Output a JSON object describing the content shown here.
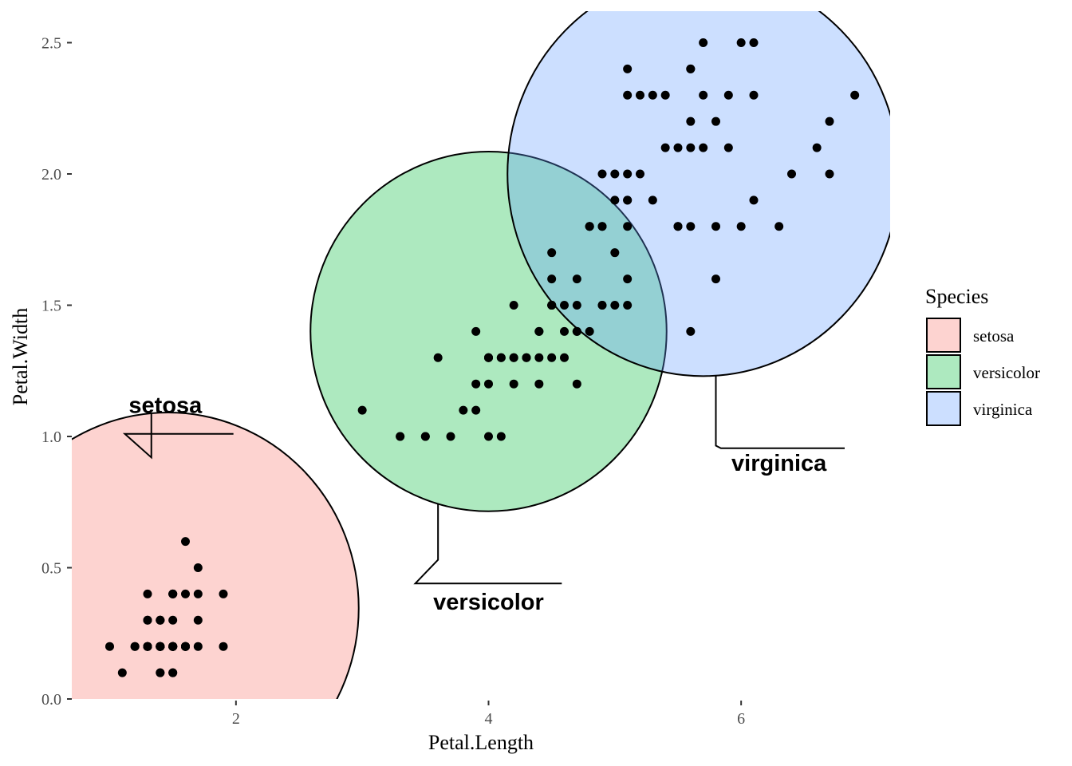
{
  "chart_data": {
    "type": "scatter",
    "xlabel": "Petal.Length",
    "ylabel": "Petal.Width",
    "x_ticks": [
      2,
      4,
      6
    ],
    "y_ticks": [
      0.0,
      0.5,
      1.0,
      1.5,
      2.0,
      2.5
    ],
    "y_tick_labels": [
      "0.0",
      "0.5",
      "1.0",
      "1.5",
      "2.0",
      "2.5"
    ],
    "xlim": [
      0.7,
      7.18
    ],
    "ylim": [
      0.0,
      2.62
    ],
    "grid": false,
    "legend": {
      "title": "Species",
      "placement": "right",
      "entries": [
        "setosa",
        "versicolor",
        "virginica"
      ]
    },
    "series": [
      {
        "name": "setosa",
        "fill": "#f8766d",
        "ellipse": {
          "cx": 1.462,
          "cy": 0.346,
          "rx": 1.51,
          "ry": 0.745
        },
        "label_text": "setosa",
        "label_anchor": {
          "x": 1.05,
          "y": 1.09
        },
        "points": [
          [
            1.4,
            0.2
          ],
          [
            1.4,
            0.2
          ],
          [
            1.3,
            0.2
          ],
          [
            1.5,
            0.2
          ],
          [
            1.4,
            0.2
          ],
          [
            1.7,
            0.4
          ],
          [
            1.4,
            0.3
          ],
          [
            1.5,
            0.2
          ],
          [
            1.4,
            0.2
          ],
          [
            1.5,
            0.1
          ],
          [
            1.5,
            0.2
          ],
          [
            1.6,
            0.2
          ],
          [
            1.4,
            0.1
          ],
          [
            1.1,
            0.1
          ],
          [
            1.2,
            0.2
          ],
          [
            1.5,
            0.4
          ],
          [
            1.3,
            0.4
          ],
          [
            1.4,
            0.3
          ],
          [
            1.7,
            0.3
          ],
          [
            1.5,
            0.3
          ],
          [
            1.7,
            0.2
          ],
          [
            1.5,
            0.4
          ],
          [
            1.0,
            0.2
          ],
          [
            1.7,
            0.5
          ],
          [
            1.9,
            0.2
          ],
          [
            1.6,
            0.2
          ],
          [
            1.6,
            0.4
          ],
          [
            1.5,
            0.2
          ],
          [
            1.4,
            0.2
          ],
          [
            1.6,
            0.2
          ],
          [
            1.6,
            0.2
          ],
          [
            1.5,
            0.4
          ],
          [
            1.5,
            0.1
          ],
          [
            1.4,
            0.2
          ],
          [
            1.5,
            0.2
          ],
          [
            1.2,
            0.2
          ],
          [
            1.3,
            0.2
          ],
          [
            1.4,
            0.1
          ],
          [
            1.3,
            0.2
          ],
          [
            1.5,
            0.2
          ],
          [
            1.3,
            0.3
          ],
          [
            1.3,
            0.3
          ],
          [
            1.3,
            0.2
          ],
          [
            1.6,
            0.6
          ],
          [
            1.9,
            0.4
          ],
          [
            1.4,
            0.3
          ],
          [
            1.6,
            0.2
          ],
          [
            1.4,
            0.2
          ],
          [
            1.5,
            0.2
          ],
          [
            1.4,
            0.2
          ]
        ]
      },
      {
        "name": "versicolor",
        "fill": "#00ba38",
        "ellipse": {
          "cx": 4.0,
          "cy": 1.4,
          "rx": 1.41,
          "ry": 0.685
        },
        "label_text": "versicolor",
        "label_anchor": {
          "x": 4.0,
          "y": 0.34
        },
        "points": [
          [
            4.7,
            1.4
          ],
          [
            4.5,
            1.5
          ],
          [
            4.9,
            1.5
          ],
          [
            4.0,
            1.3
          ],
          [
            4.6,
            1.5
          ],
          [
            4.5,
            1.3
          ],
          [
            4.7,
            1.6
          ],
          [
            3.3,
            1.0
          ],
          [
            4.6,
            1.3
          ],
          [
            3.9,
            1.4
          ],
          [
            3.5,
            1.0
          ],
          [
            4.2,
            1.5
          ],
          [
            4.0,
            1.0
          ],
          [
            4.7,
            1.4
          ],
          [
            3.6,
            1.3
          ],
          [
            4.4,
            1.4
          ],
          [
            4.5,
            1.5
          ],
          [
            4.1,
            1.0
          ],
          [
            4.5,
            1.5
          ],
          [
            3.9,
            1.1
          ],
          [
            4.8,
            1.8
          ],
          [
            4.0,
            1.3
          ],
          [
            4.9,
            1.5
          ],
          [
            4.7,
            1.2
          ],
          [
            4.3,
            1.3
          ],
          [
            4.4,
            1.4
          ],
          [
            4.8,
            1.4
          ],
          [
            5.0,
            1.7
          ],
          [
            4.5,
            1.5
          ],
          [
            3.5,
            1.0
          ],
          [
            3.8,
            1.1
          ],
          [
            3.7,
            1.0
          ],
          [
            3.9,
            1.2
          ],
          [
            5.1,
            1.6
          ],
          [
            4.5,
            1.5
          ],
          [
            4.5,
            1.6
          ],
          [
            4.7,
            1.5
          ],
          [
            4.4,
            1.3
          ],
          [
            4.1,
            1.3
          ],
          [
            4.0,
            1.3
          ],
          [
            4.4,
            1.2
          ],
          [
            4.6,
            1.4
          ],
          [
            4.0,
            1.2
          ],
          [
            3.3,
            1.0
          ],
          [
            4.2,
            1.3
          ],
          [
            4.2,
            1.2
          ],
          [
            4.2,
            1.3
          ],
          [
            4.3,
            1.3
          ],
          [
            3.0,
            1.1
          ],
          [
            4.1,
            1.3
          ]
        ]
      },
      {
        "name": "virginica",
        "fill": "#619cff",
        "ellipse": {
          "cx": 5.7,
          "cy": 2.0,
          "rx": 1.55,
          "ry": 0.77
        },
        "label_text": "virginica",
        "label_anchor": {
          "x": 6.3,
          "y": 0.87
        },
        "points": [
          [
            6.0,
            2.5
          ],
          [
            5.1,
            1.9
          ],
          [
            5.9,
            2.1
          ],
          [
            5.6,
            1.8
          ],
          [
            5.8,
            2.2
          ],
          [
            6.6,
            2.1
          ],
          [
            4.5,
            1.7
          ],
          [
            6.3,
            1.8
          ],
          [
            5.8,
            1.8
          ],
          [
            6.1,
            2.5
          ],
          [
            5.1,
            2.0
          ],
          [
            5.3,
            1.9
          ],
          [
            5.5,
            2.1
          ],
          [
            5.0,
            2.0
          ],
          [
            5.1,
            2.4
          ],
          [
            5.3,
            2.3
          ],
          [
            5.5,
            1.8
          ],
          [
            6.7,
            2.2
          ],
          [
            6.9,
            2.3
          ],
          [
            5.0,
            1.5
          ],
          [
            5.7,
            2.3
          ],
          [
            4.9,
            2.0
          ],
          [
            6.7,
            2.0
          ],
          [
            4.9,
            1.8
          ],
          [
            5.7,
            2.1
          ],
          [
            6.0,
            1.8
          ],
          [
            4.8,
            1.8
          ],
          [
            4.9,
            1.8
          ],
          [
            5.6,
            2.1
          ],
          [
            5.8,
            1.6
          ],
          [
            6.1,
            1.9
          ],
          [
            6.4,
            2.0
          ],
          [
            5.6,
            2.2
          ],
          [
            5.1,
            1.5
          ],
          [
            5.6,
            1.4
          ],
          [
            6.1,
            2.3
          ],
          [
            5.6,
            2.4
          ],
          [
            5.5,
            1.8
          ],
          [
            4.8,
            1.8
          ],
          [
            5.4,
            2.1
          ],
          [
            5.6,
            2.4
          ],
          [
            5.1,
            2.3
          ],
          [
            5.1,
            1.9
          ],
          [
            5.9,
            2.3
          ],
          [
            5.7,
            2.5
          ],
          [
            5.2,
            2.3
          ],
          [
            5.0,
            1.9
          ],
          [
            5.2,
            2.0
          ],
          [
            5.4,
            2.3
          ],
          [
            5.1,
            1.8
          ]
        ]
      }
    ]
  }
}
